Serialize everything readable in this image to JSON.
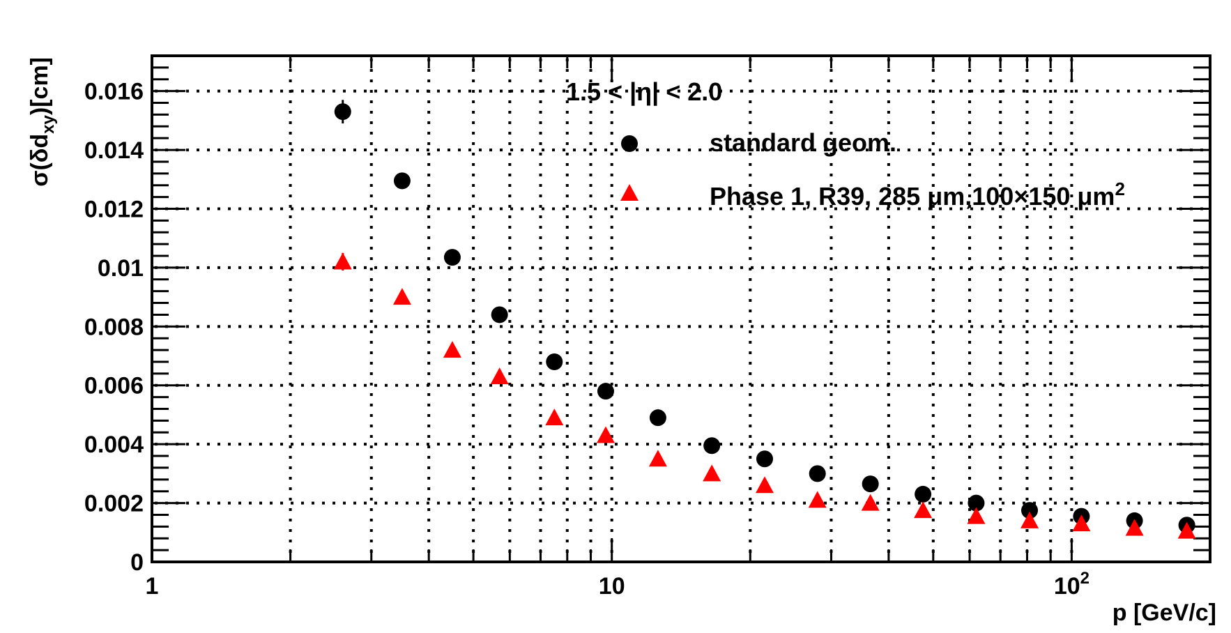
{
  "chart_data": {
    "type": "scatter",
    "title": "",
    "xlabel": "p [GeV/c]",
    "ylabel": "σ(δd_xy)[cm]",
    "xscale": "log",
    "xlim": [
      1,
      200
    ],
    "ylim": [
      0,
      0.0172
    ],
    "grid": true,
    "legend_position": "top-right",
    "annotation": "1.5 < |η| < 2.0",
    "x_tick_labels": [
      "1",
      "10",
      "10²"
    ],
    "y_tick_labels": [
      "0",
      "0.002",
      "0.004",
      "0.006",
      "0.008",
      "0.01",
      "0.012",
      "0.014",
      "0.016"
    ],
    "x": [
      2.6,
      3.5,
      4.5,
      5.7,
      7.5,
      9.7,
      12.6,
      16.5,
      21.5,
      28,
      36.5,
      47.5,
      62,
      81,
      105,
      137,
      178
    ],
    "series": [
      {
        "name": "standard geom.",
        "marker": "circle",
        "color": "#000000",
        "values": [
          0.0153,
          0.01295,
          0.01035,
          0.0084,
          0.0068,
          0.0058,
          0.0049,
          0.00395,
          0.0035,
          0.003,
          0.00265,
          0.0023,
          0.002,
          0.00175,
          0.00155,
          0.0014,
          0.00125
        ],
        "errors": [
          0.0004,
          0.00025,
          0.00015,
          0.00012,
          0.0001,
          8e-05,
          7e-05,
          6e-05,
          5e-05,
          4e-05,
          4e-05,
          3e-05,
          3e-05,
          3e-05,
          2e-05,
          2e-05,
          2e-05
        ]
      },
      {
        "name": "Phase 1, R39, 285 μm,100×150 μm²",
        "marker": "triangle",
        "color": "#ff0000",
        "values": [
          0.0102,
          0.009,
          0.0072,
          0.0063,
          0.0049,
          0.0043,
          0.0035,
          0.003,
          0.0026,
          0.0021,
          0.002,
          0.00175,
          0.00155,
          0.0014,
          0.0013,
          0.00115,
          0.00105
        ],
        "errors": [
          0.0003,
          0.0002,
          0.00012,
          0.0001,
          8e-05,
          7e-05,
          6e-05,
          5e-05,
          4e-05,
          4e-05,
          3e-05,
          3e-05,
          3e-05,
          2e-05,
          2e-05,
          2e-05,
          2e-05
        ]
      }
    ]
  }
}
